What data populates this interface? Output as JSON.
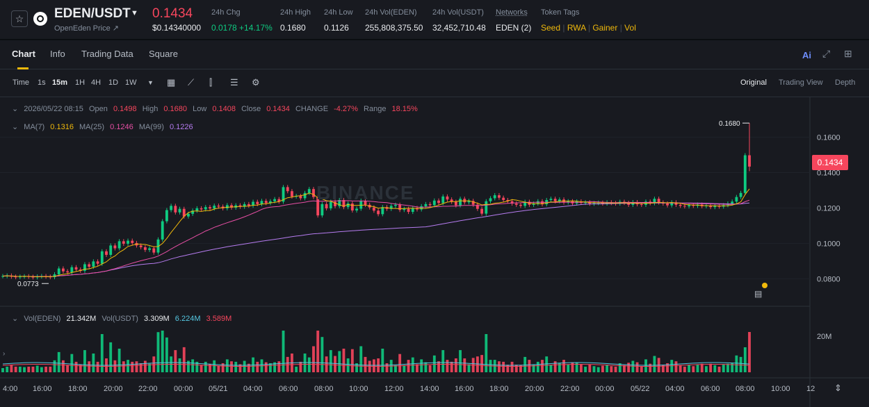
{
  "header": {
    "pair": "EDEN/USDT",
    "sub": "OpenEden Price ↗",
    "price": "0.1434",
    "price_usd": "$0.14340000",
    "stats": [
      {
        "label": "24h Chg",
        "value": "0.0178 +14.17%"
      },
      {
        "label": "24h High",
        "value": "0.1680"
      },
      {
        "label": "24h Low",
        "value": "0.1126"
      },
      {
        "label": "24h Vol(EDEN)",
        "value": "255,808,375.50"
      },
      {
        "label": "24h Vol(USDT)",
        "value": "32,452,710.48"
      },
      {
        "label": "Networks",
        "value": "EDEN (2)"
      }
    ],
    "token_tags_label": "Token Tags",
    "tags": [
      "Seed",
      "RWA",
      "Gainer",
      "Vol"
    ]
  },
  "tabs": [
    "Chart",
    "Info",
    "Trading Data",
    "Square"
  ],
  "ai_label": "Ai",
  "toolbar": {
    "intervals": [
      "Time",
      "1s",
      "15m",
      "1H",
      "4H",
      "1D",
      "1W"
    ],
    "views": [
      "Original",
      "Trading View",
      "Depth"
    ]
  },
  "ohlc": {
    "date": "2026/05/22 08:15",
    "open_label": "Open",
    "open": "0.1498",
    "high_label": "High",
    "high": "0.1680",
    "low_label": "Low",
    "low": "0.1408",
    "close_label": "Close",
    "close": "0.1434",
    "change_label": "CHANGE",
    "change": "-4.27%",
    "range_label": "Range",
    "range": "18.15%"
  },
  "ma": {
    "ma7_label": "MA(7)",
    "ma7": "0.1316",
    "ma25_label": "MA(25)",
    "ma25": "0.1246",
    "ma99_label": "MA(99)",
    "ma99": "0.1226"
  },
  "vol": {
    "eden_label": "Vol(EDEN)",
    "eden": "21.342M",
    "usdt_label": "Vol(USDT)",
    "usdt": "3.309M",
    "ma1": "6.224M",
    "ma2": "3.589M"
  },
  "chart_data": {
    "type": "candlestick",
    "y_ticks": [
      "0.1600",
      "0.1400",
      "0.1200",
      "0.1000",
      "0.0800"
    ],
    "ylim": [
      0.066,
      0.172
    ],
    "current_price_tag": "0.1434",
    "high_marker": "0.1680",
    "low_marker": "0.0773",
    "x_ticks": [
      "4:00",
      "16:00",
      "18:00",
      "20:00",
      "22:00",
      "00:00",
      "05/21",
      "04:00",
      "06:00",
      "08:00",
      "10:00",
      "12:00",
      "14:00",
      "16:00",
      "18:00",
      "20:00",
      "22:00",
      "00:00",
      "05/22",
      "04:00",
      "06:00",
      "08:00",
      "10:00",
      "12"
    ],
    "vol_tick": "20M",
    "watermark": "BINANCE",
    "close_series": [
      0.0815,
      0.0818,
      0.0812,
      0.0809,
      0.0812,
      0.0814,
      0.0811,
      0.0808,
      0.0813,
      0.0815,
      0.0812,
      0.0809,
      0.0825,
      0.0858,
      0.0842,
      0.0836,
      0.0865,
      0.0852,
      0.0845,
      0.0882,
      0.0868,
      0.0898,
      0.0885,
      0.0955,
      0.0935,
      0.0988,
      0.0972,
      0.1012,
      0.0998,
      0.1015,
      0.1002,
      0.0988,
      0.0978,
      0.0963,
      0.0972,
      0.0948,
      0.1022,
      0.1125,
      0.1188,
      0.1212,
      0.1175,
      0.1195,
      0.1152,
      0.1167,
      0.1185,
      0.1198,
      0.1192,
      0.1205,
      0.1197,
      0.1213,
      0.1208,
      0.1198,
      0.1216,
      0.1202,
      0.1215,
      0.1207,
      0.1222,
      0.1213,
      0.1235,
      0.1222,
      0.124,
      0.1228,
      0.1238,
      0.125,
      0.1236,
      0.1318,
      0.1295,
      0.1265,
      0.1268,
      0.1255,
      0.1285,
      0.1307,
      0.1262,
      0.1158,
      0.1222,
      0.1198,
      0.1235,
      0.121,
      0.1245,
      0.1205,
      0.1225,
      0.1186,
      0.1196,
      0.1241,
      0.1218,
      0.1203,
      0.1185,
      0.1165,
      0.1205,
      0.1195,
      0.1212,
      0.1218,
      0.1189,
      0.1195,
      0.1178,
      0.12,
      0.1192,
      0.121,
      0.1222,
      0.1216,
      0.1242,
      0.1228,
      0.1265,
      0.1248,
      0.1235,
      0.1215,
      0.1252,
      0.1232,
      0.124,
      0.1219,
      0.1195,
      0.1168,
      0.1238,
      0.1255,
      0.1272,
      0.1258,
      0.1245,
      0.1238,
      0.1225,
      0.1218,
      0.1212,
      0.1235,
      0.1218,
      0.1225,
      0.1238,
      0.1221,
      0.1245,
      0.1252,
      0.1238,
      0.1248,
      0.1231,
      0.1238,
      0.1226,
      0.1237,
      0.1229,
      0.1232,
      0.1224,
      0.1228,
      0.123,
      0.1225,
      0.1232,
      0.1228,
      0.1225,
      0.1235,
      0.1229,
      0.1218,
      0.1233,
      0.1221,
      0.1218,
      0.1236,
      0.1227,
      0.1252,
      0.1231,
      0.1225,
      0.1215,
      0.1232,
      0.1218,
      0.1212,
      0.1209,
      0.1216,
      0.1212,
      0.1219,
      0.121,
      0.1214,
      0.1205,
      0.1211,
      0.1208,
      0.1216,
      0.1225,
      0.1236,
      0.1262,
      0.1285,
      0.1498,
      0.1434
    ],
    "ma7_end": 0.1316,
    "ma25_end": 0.1246,
    "ma99_end": 0.1226
  }
}
